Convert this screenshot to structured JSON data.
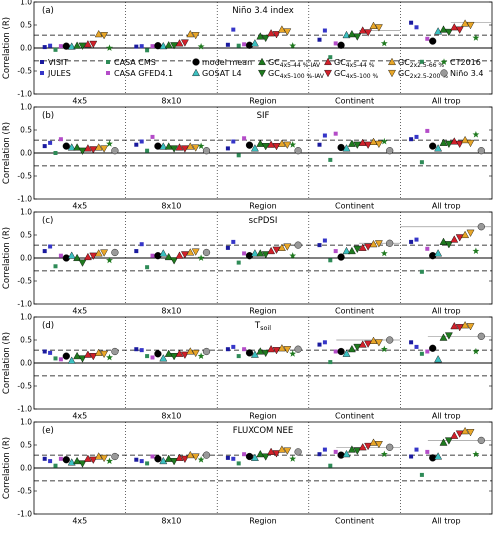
{
  "chart_data": {
    "type": "scatter",
    "ylabel": "Correlation (R)",
    "ylim": [
      -1.0,
      1.0
    ],
    "yticks": [
      "1.0",
      "0.5",
      "0.0",
      "-0.5",
      "-1.0"
    ],
    "groups": [
      "4x5",
      "8x10",
      "Region",
      "Continent",
      "All trop"
    ],
    "reference_lines": [
      -0.28,
      0.0,
      0.28
    ],
    "series": [
      {
        "name": "VISIT",
        "marker": "square",
        "color": "#1a1a9e"
      },
      {
        "name": "JULES",
        "marker": "square",
        "color": "#3636c8"
      },
      {
        "name": "CASA CMS",
        "marker": "square",
        "color": "#2e8b57"
      },
      {
        "name": "CASA GFED4.1",
        "marker": "square",
        "color": "#b44cc8"
      },
      {
        "name": "model mean",
        "marker": "circle",
        "color": "#000000"
      },
      {
        "name": "GOSAT L4",
        "marker": "triangle-up",
        "color": "#3cc0c0"
      },
      {
        "name": "GC 4x5-44 %-IAV",
        "marker": "triangle-up",
        "color": "#1f7a1f"
      },
      {
        "name": "GC 4x5-100 %-IAV",
        "marker": "triangle-down",
        "color": "#1f7a1f"
      },
      {
        "name": "GC 4x5-44 %",
        "marker": "triangle-up",
        "color": "#d0202a"
      },
      {
        "name": "GC 4x5-100 %",
        "marker": "triangle-down",
        "color": "#d0202a"
      },
      {
        "name": "GC 2x2.5-66 %",
        "marker": "triangle-up",
        "color": "#e8a628"
      },
      {
        "name": "GC 2x2.5-200 %",
        "marker": "triangle-down",
        "color": "#e8a628"
      },
      {
        "name": "CT2016",
        "marker": "star",
        "color": "#1f7a1f"
      },
      {
        "name": "Niño 3.4",
        "marker": "circle",
        "color": "#999999"
      }
    ],
    "legend_rows": [
      [
        {
          "s": 0,
          "text": "VISIT"
        },
        {
          "s": 2,
          "text": "CASA CMS"
        },
        {
          "s": 4,
          "text": "model mean"
        },
        {
          "s": 6,
          "text": "GC",
          "sub": "4x5-44 %-IAV"
        },
        {
          "s": 8,
          "text": "GC",
          "sub": "4x5-44 %"
        },
        {
          "s": 10,
          "text": "GC",
          "sub": "2x2.5-66 %"
        },
        {
          "s": 12,
          "text": "CT2016"
        }
      ],
      [
        {
          "s": 1,
          "text": "JULES"
        },
        {
          "s": 3,
          "text": "CASA GFED4.1"
        },
        {
          "s": 5,
          "text": "GOSAT L4"
        },
        {
          "s": 7,
          "text": "GC",
          "sub": "4x5-100 %-IAV"
        },
        {
          "s": 9,
          "text": "GC",
          "sub": "4x5-100 %"
        },
        {
          "s": 11,
          "text": "GC",
          "sub": "2x2.5-200 %"
        },
        {
          "s": 13,
          "text": "Niño 3.4"
        }
      ]
    ],
    "panels": [
      {
        "label": "(a)",
        "title": "Niño 3.4 index",
        "title_sub": "",
        "values": [
          [
            0.02,
            0.03,
            0.07,
            0.18,
            0.55
          ],
          [
            0.05,
            0.04,
            0.4,
            0.38,
            0.45
          ],
          [
            -0.04,
            -0.05,
            0.05,
            -0.2,
            -0.3
          ],
          [
            0.04,
            0.04,
            0.08,
            0.1,
            0.2
          ],
          [
            0.04,
            0.05,
            0.06,
            0.06,
            0.15
          ],
          [
            0.03,
            0.04,
            0.1,
            0.28,
            0.36
          ],
          [
            0.05,
            0.06,
            0.25,
            0.3,
            0.4
          ],
          [
            0.05,
            0.06,
            0.22,
            0.25,
            0.35
          ],
          [
            0.08,
            0.1,
            0.32,
            0.38,
            0.45
          ],
          [
            0.09,
            0.12,
            0.3,
            0.34,
            0.4
          ],
          [
            0.3,
            0.3,
            0.4,
            0.48,
            0.53
          ],
          [
            0.28,
            0.28,
            0.36,
            0.45,
            0.5
          ],
          [
            0.0,
            0.03,
            0.05,
            0.1,
            0.22
          ],
          [
            null,
            null,
            null,
            null,
            null
          ]
        ],
        "hlines": [
          {
            "g": 3,
            "x0": 0.55,
            "x1": 1.0,
            "y": 0.38
          },
          {
            "g": 4,
            "x0": 0.55,
            "x1": 1.0,
            "y": 0.55
          }
        ]
      },
      {
        "label": "(b)",
        "title": "SIF",
        "title_sub": "",
        "values": [
          [
            0.15,
            0.18,
            0.1,
            0.18,
            0.3
          ],
          [
            0.22,
            0.25,
            0.25,
            0.38,
            0.35
          ],
          [
            0.0,
            0.05,
            -0.05,
            -0.15,
            -0.2
          ],
          [
            0.3,
            0.35,
            0.32,
            0.42,
            0.48
          ],
          [
            0.15,
            0.15,
            0.17,
            0.12,
            0.15
          ],
          [
            0.12,
            0.14,
            0.1,
            0.1,
            0.1
          ],
          [
            0.12,
            0.14,
            0.2,
            0.2,
            0.22
          ],
          [
            0.05,
            0.1,
            0.15,
            0.18,
            0.2
          ],
          [
            0.1,
            0.12,
            0.18,
            0.22,
            0.25
          ],
          [
            0.08,
            0.1,
            0.15,
            0.18,
            0.2
          ],
          [
            0.12,
            0.14,
            0.2,
            0.24,
            0.28
          ],
          [
            0.1,
            0.12,
            0.18,
            0.2,
            0.22
          ],
          [
            0.2,
            0.15,
            0.18,
            0.25,
            0.4
          ],
          [
            0.05,
            0.05,
            0.05,
            0.05,
            0.05
          ]
        ],
        "hlines": []
      },
      {
        "label": "(c)",
        "title": "scPDSI",
        "title_sub": "",
        "values": [
          [
            0.15,
            0.15,
            0.22,
            0.28,
            0.35
          ],
          [
            0.25,
            0.3,
            0.35,
            0.38,
            0.4
          ],
          [
            -0.18,
            -0.2,
            -0.1,
            -0.05,
            -0.3
          ],
          [
            0.05,
            0.05,
            0.1,
            0.15,
            0.2
          ],
          [
            0.0,
            0.05,
            0.05,
            0.02,
            0.05
          ],
          [
            0.05,
            0.1,
            0.1,
            0.15,
            0.1
          ],
          [
            0.0,
            0.02,
            0.1,
            0.15,
            0.35
          ],
          [
            -0.1,
            -0.05,
            0.08,
            0.2,
            0.3
          ],
          [
            0.02,
            0.05,
            0.15,
            0.22,
            0.4
          ],
          [
            0.05,
            0.08,
            0.18,
            0.25,
            0.45
          ],
          [
            0.1,
            0.12,
            0.22,
            0.3,
            0.5
          ],
          [
            0.12,
            0.14,
            0.25,
            0.32,
            0.55
          ],
          [
            -0.05,
            0.0,
            0.05,
            0.1,
            0.15
          ],
          [
            0.12,
            0.12,
            0.28,
            0.32,
            0.68
          ]
        ],
        "hlines": [
          {
            "g": 3,
            "x0": 0.55,
            "x1": 1.0,
            "y": 0.32
          },
          {
            "g": 4,
            "x0": 0.0,
            "x1": 1.0,
            "y": 0.68
          }
        ]
      },
      {
        "label": "(d)",
        "title": "T",
        "title_sub": "soil",
        "values": [
          [
            0.25,
            0.3,
            0.3,
            0.4,
            0.45
          ],
          [
            0.22,
            0.28,
            0.35,
            0.45,
            0.35
          ],
          [
            0.1,
            0.15,
            0.15,
            0.02,
            0.2
          ],
          [
            0.08,
            0.12,
            0.3,
            0.25,
            0.25
          ],
          [
            0.15,
            0.2,
            0.22,
            0.25,
            0.32
          ],
          [
            0.05,
            0.1,
            0.18,
            0.2,
            0.08
          ],
          [
            0.15,
            0.2,
            0.25,
            0.3,
            0.55
          ],
          [
            0.1,
            0.15,
            0.22,
            0.35,
            0.6
          ],
          [
            0.18,
            0.2,
            0.3,
            0.4,
            0.8
          ],
          [
            0.15,
            0.18,
            0.28,
            0.42,
            0.78
          ],
          [
            0.22,
            0.25,
            0.32,
            0.48,
            0.82
          ],
          [
            0.2,
            0.22,
            0.3,
            0.45,
            0.8
          ],
          [
            0.12,
            0.15,
            0.2,
            0.3,
            0.25
          ],
          [
            0.25,
            0.25,
            0.3,
            0.5,
            0.58
          ]
        ],
        "hlines": [
          {
            "g": 3,
            "x0": 0.3,
            "x1": 1.0,
            "y": 0.5
          },
          {
            "g": 4,
            "x0": 0.3,
            "x1": 1.0,
            "y": 0.58
          }
        ]
      },
      {
        "label": "(e)",
        "title": "FLUXCOM NEE",
        "title_sub": "",
        "values": [
          [
            0.2,
            0.18,
            0.22,
            0.3,
            0.25
          ],
          [
            0.15,
            0.15,
            0.2,
            0.4,
            0.4
          ],
          [
            0.05,
            0.1,
            0.1,
            0.05,
            -0.15
          ],
          [
            0.2,
            0.25,
            0.3,
            0.35,
            0.35
          ],
          [
            0.18,
            0.2,
            0.25,
            0.28,
            0.22
          ],
          [
            0.12,
            0.15,
            0.22,
            0.3,
            0.25
          ],
          [
            0.15,
            0.2,
            0.3,
            0.4,
            0.55
          ],
          [
            0.1,
            0.15,
            0.25,
            0.38,
            0.6
          ],
          [
            0.2,
            0.22,
            0.35,
            0.45,
            0.7
          ],
          [
            0.18,
            0.2,
            0.32,
            0.48,
            0.75
          ],
          [
            0.25,
            0.28,
            0.4,
            0.55,
            0.8
          ],
          [
            0.22,
            0.25,
            0.38,
            0.52,
            0.78
          ],
          [
            0.15,
            0.18,
            0.2,
            0.3,
            0.3
          ],
          [
            0.25,
            0.28,
            0.35,
            0.45,
            0.6
          ]
        ],
        "hlines": [
          {
            "g": 3,
            "x0": 0.3,
            "x1": 1.0,
            "y": 0.45
          },
          {
            "g": 4,
            "x0": 0.3,
            "x1": 1.0,
            "y": 0.6
          }
        ]
      }
    ]
  }
}
